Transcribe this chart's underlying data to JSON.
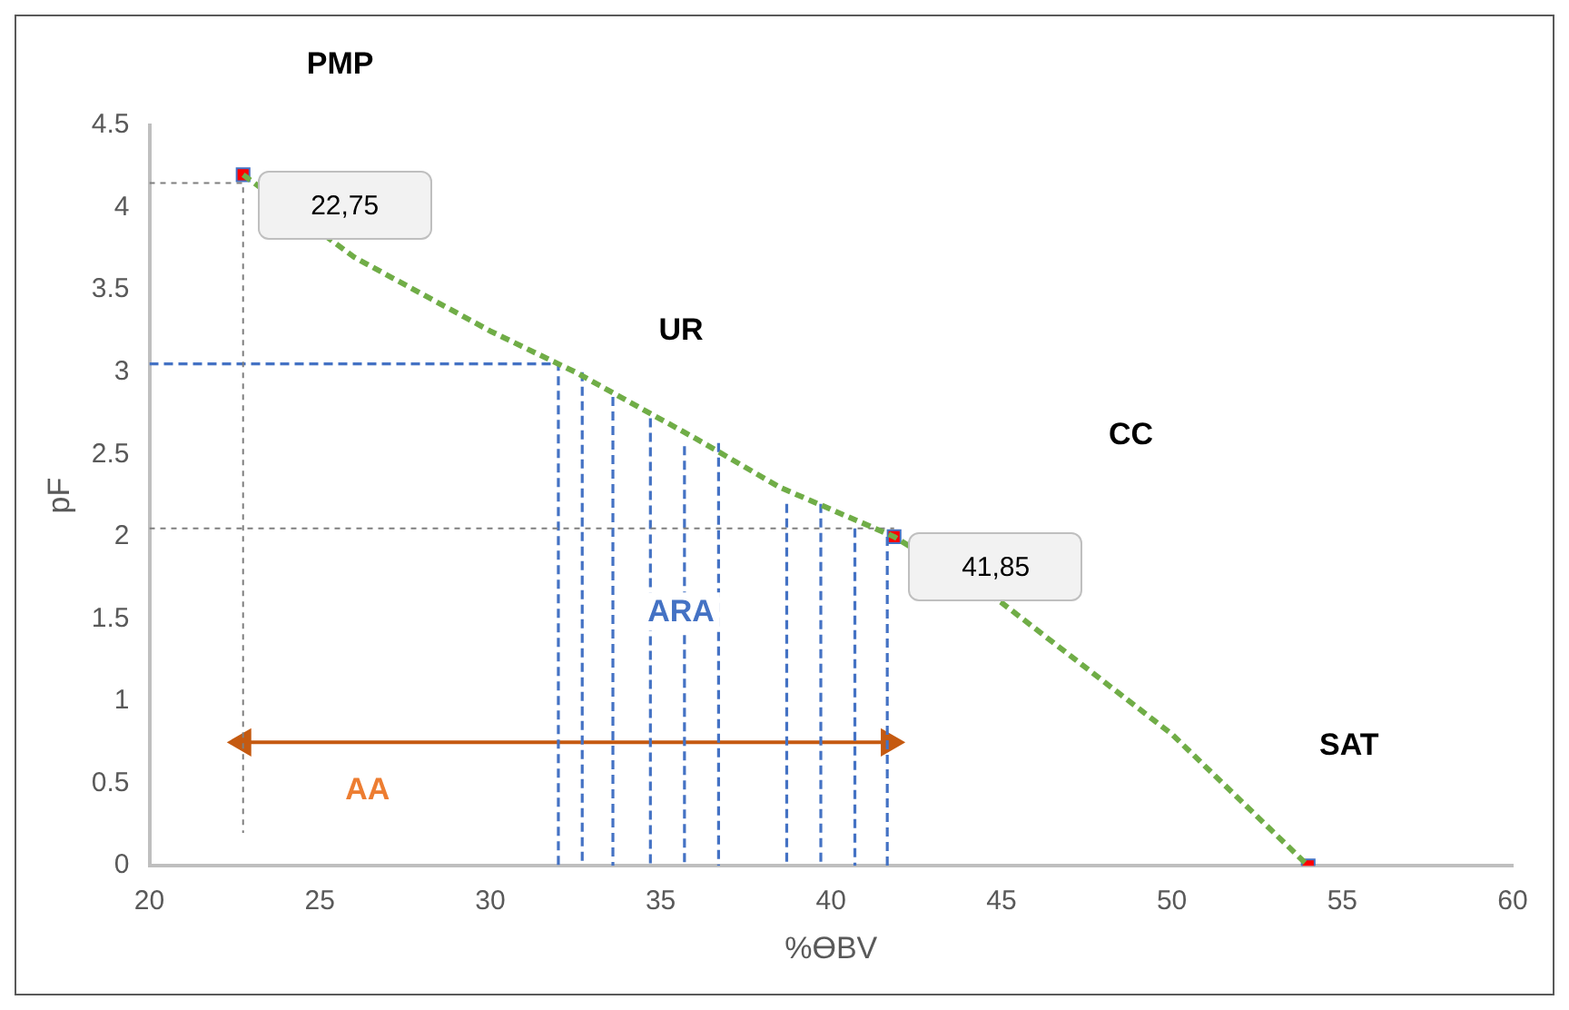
{
  "chart_data": {
    "type": "line",
    "xlabel": "%ƟBV",
    "ylabel": "pF",
    "xlim": [
      20,
      60
    ],
    "xticks": [
      20,
      25,
      30,
      35,
      40,
      45,
      50,
      55,
      60
    ],
    "ylim": [
      0,
      4.5
    ],
    "yticks": [
      0,
      0.5,
      1,
      1.5,
      2,
      2.5,
      3,
      3.5,
      4,
      4.5
    ],
    "grid": false,
    "legend": false,
    "series": [
      {
        "color": "#70ad47",
        "line_style": "dashed",
        "marker": "none",
        "x": [
          22.75,
          26,
          30,
          32.5,
          36,
          38.5,
          41.85,
          45,
          50,
          54
        ],
        "values": [
          4.2,
          3.7,
          3.25,
          3,
          2.6,
          2.3,
          2,
          1.6,
          0.8,
          0
        ]
      },
      {
        "color": "#7f7f7f",
        "line_style": "dotted",
        "marker": "none",
        "x": [
          20,
          22.75,
          22.75
        ],
        "values": [
          4.15,
          4.15,
          0.2
        ]
      },
      {
        "color": "#7f7f7f",
        "line_style": "dotted",
        "marker": "none",
        "x": [
          20,
          41.85
        ],
        "values": [
          2.05,
          2.05
        ]
      },
      {
        "color": "#4472c4",
        "line_style": "dashed",
        "marker": "none",
        "x": [
          20,
          32,
          32
        ],
        "values": [
          3.05,
          3.05,
          0
        ]
      },
      {
        "color": "#4472c4",
        "line_style": "dashed",
        "marker": "none",
        "x": [
          32.7,
          32.7
        ],
        "values": [
          3,
          0
        ]
      },
      {
        "color": "#4472c4",
        "line_style": "dashed",
        "marker": "none",
        "x": [
          33.6,
          33.6
        ],
        "values": [
          2.85,
          0
        ]
      },
      {
        "color": "#4472c4",
        "line_style": "dashed",
        "marker": "none",
        "x": [
          34.7,
          34.7
        ],
        "values": [
          2.72,
          0
        ]
      },
      {
        "color": "#4472c4",
        "line_style": "dashed",
        "marker": "none",
        "x": [
          35.7,
          35.7
        ],
        "values": [
          2.55,
          0
        ]
      },
      {
        "color": "#4472c4",
        "line_style": "dashed",
        "marker": "none",
        "x": [
          36.7,
          36.7
        ],
        "values": [
          2.57,
          0
        ]
      },
      {
        "color": "#4472c4",
        "line_style": "dashed",
        "marker": "none",
        "x": [
          38.7,
          38.7
        ],
        "values": [
          2.2,
          0
        ]
      },
      {
        "color": "#4472c4",
        "line_style": "dashed",
        "marker": "none",
        "x": [
          39.7,
          39.7
        ],
        "values": [
          2.2,
          0
        ]
      },
      {
        "color": "#4472c4",
        "line_style": "dashed",
        "marker": "none",
        "x": [
          40.7,
          40.7
        ],
        "values": [
          2.05,
          0
        ]
      },
      {
        "color": "#4472c4",
        "line_style": "dashed",
        "marker": "none",
        "x": [
          41.65,
          41.65
        ],
        "values": [
          2,
          0
        ]
      },
      {
        "color": "#c55a11",
        "line_style": "solid",
        "marker": "triangle",
        "x": [
          22.75,
          41.7
        ],
        "values": [
          0.75,
          0.75
        ]
      },
      {
        "type": "scatter",
        "color": "#ff0000",
        "marker": "square",
        "x": [
          22.75,
          41.85,
          54
        ],
        "values": [
          4.2,
          2,
          0
        ]
      }
    ],
    "annotations": [
      "PMP",
      "UR",
      "CC",
      "SAT",
      "ARA",
      "AA",
      {
        "text": "22,75",
        "x": 22.75,
        "y": 4.2
      },
      {
        "text": "41,85",
        "x": 41.85,
        "y": 2
      }
    ]
  }
}
